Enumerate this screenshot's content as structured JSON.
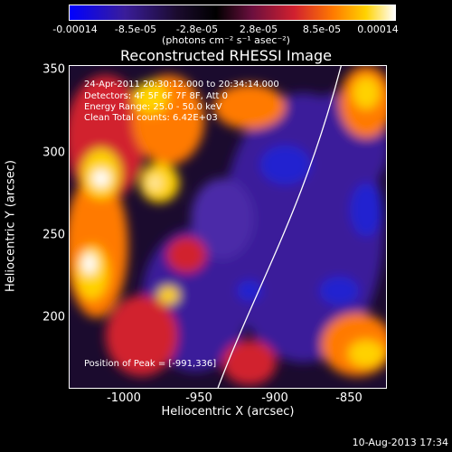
{
  "colorbar": {
    "ticks": [
      "-0.00014",
      "-8.5e-05",
      "-2.8e-05",
      "2.8e-05",
      "8.5e-05",
      "0.00014"
    ],
    "unit_label": "(photons cm⁻² s⁻¹ asec⁻²)"
  },
  "title": "Reconstructed RHESSI Image",
  "info": {
    "line1": "24-Apr-2011 20:30:12.000 to 20:34:14.000",
    "line2": "Detectors: 4F 5F 6F 7F 8F, Att 0",
    "line3": "Energy Range: 25.0 - 50.0 keV",
    "line4": "Clean    Total counts: 6.42E+03"
  },
  "peak": "Position of Peak = [-991,336]",
  "x_axis": {
    "label": "Heliocentric X (arcsec)",
    "ticks": [
      "-1000",
      "-950",
      "-900",
      "-850"
    ]
  },
  "y_axis": {
    "label": "Heliocentric Y (arcsec)",
    "ticks": [
      "350",
      "300",
      "250",
      "200"
    ]
  },
  "timestamp": "10-Aug-2013 17:34",
  "colors": {
    "background": "#000000",
    "hot_high": "#ffffff",
    "hot_mid": "#ff7a00",
    "hot_low": "#d1202f",
    "cold_low": "#3a1d9a",
    "cold_high": "#0000ff"
  }
}
